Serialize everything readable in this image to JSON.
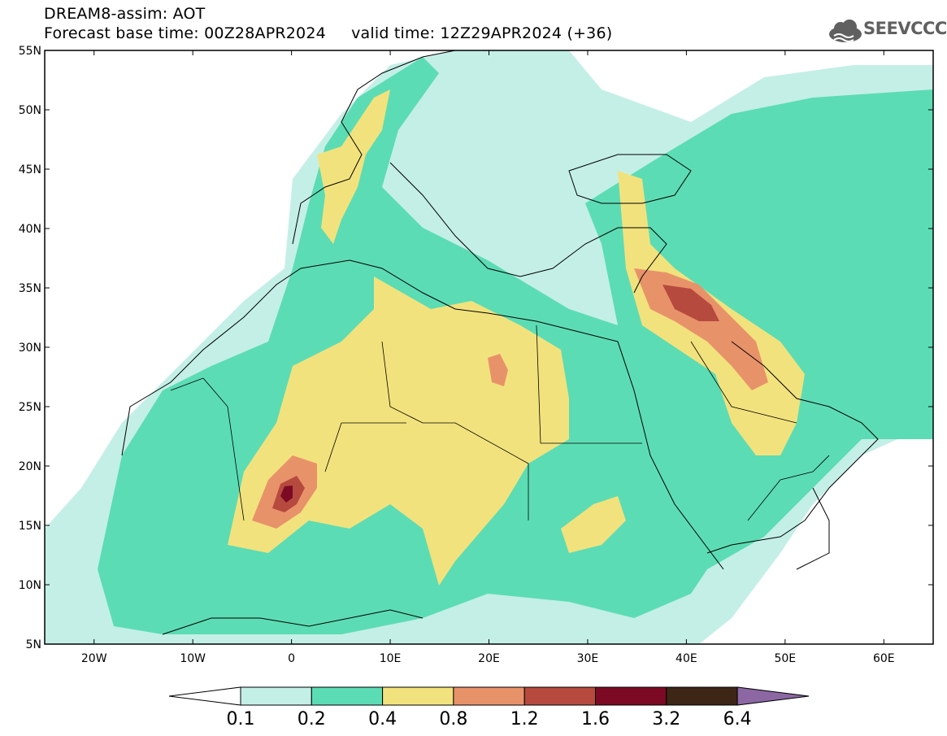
{
  "header": {
    "line1": "DREAM8-assim: AOT",
    "line2": "Forecast base time: 00Z28APR2024     valid time: 12Z29APR2024 (+36)"
  },
  "logo": {
    "text": "SEEVCCC",
    "icon": "cloud-icon"
  },
  "map": {
    "lat_labels": [
      "55N",
      "50N",
      "45N",
      "40N",
      "35N",
      "30N",
      "25N",
      "20N",
      "15N",
      "10N",
      "5N"
    ],
    "lon_labels": [
      "20W",
      "10W",
      "0",
      "10E",
      "20E",
      "30E",
      "40E",
      "50E",
      "60E"
    ],
    "extent": {
      "lon_min": -25,
      "lon_max": 65,
      "lat_min": 5,
      "lat_max": 55
    }
  },
  "colorbar": {
    "labels": [
      "0.1",
      "0.2",
      "0.4",
      "0.8",
      "1.2",
      "1.6",
      "3.2",
      "6.4"
    ],
    "colors": [
      "#c3efe6",
      "#5cdcb4",
      "#f2e27d",
      "#e8926a",
      "#b64a3e",
      "#7c0a24",
      "#3d2616",
      "#8c67a4"
    ],
    "below_color": "#ffffff"
  }
}
